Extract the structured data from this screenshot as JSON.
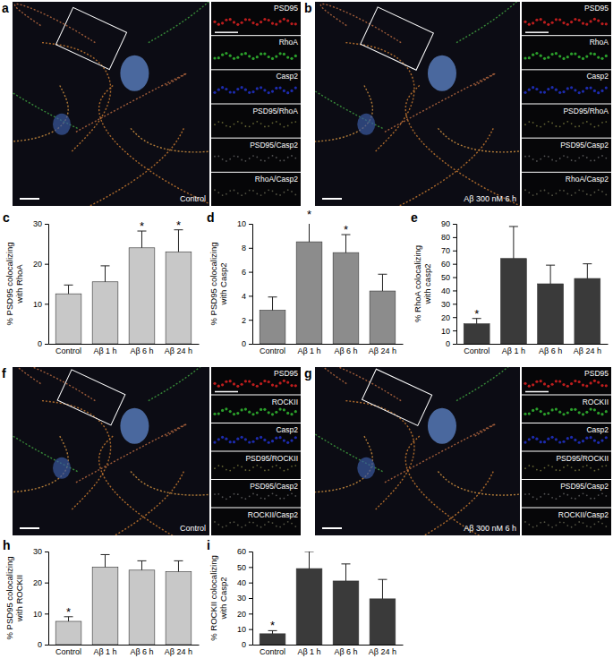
{
  "chart_data": [
    {
      "panel": "c",
      "type": "bar",
      "ylabel": "% PSD95 colocalizing with RhoA",
      "categories": [
        "Control",
        "Aβ 1 h",
        "Aβ 6 h",
        "Aβ 24 h"
      ],
      "values": [
        12.5,
        15.5,
        24,
        23
      ],
      "errors": [
        2.2,
        4,
        4.2,
        5.5
      ],
      "color": "#c8c8c8",
      "ylim": [
        0,
        30
      ],
      "yticks": [
        0,
        10,
        20,
        30
      ],
      "annotations": [
        {
          "text": "*",
          "x": "Aβ 6 h"
        },
        {
          "text": "*",
          "x": "Aβ 24 h"
        }
      ]
    },
    {
      "panel": "d",
      "type": "bar",
      "ylabel": "% PSD95 colocalizing with Casp2",
      "categories": [
        "Control",
        "Aβ 1 h",
        "Aβ 6 h",
        "Aβ 24 h"
      ],
      "values": [
        2.8,
        8.5,
        7.6,
        4.4
      ],
      "errors": [
        1.1,
        1.9,
        1.5,
        1.4
      ],
      "color": "#8c8c8c",
      "ylim": [
        0,
        10
      ],
      "yticks": [
        0,
        2,
        4,
        6,
        8,
        10
      ],
      "annotations": [
        {
          "text": "*",
          "x": "Aβ 1 h"
        },
        {
          "text": "*",
          "x": "Aβ 6 h"
        }
      ]
    },
    {
      "panel": "e",
      "type": "bar",
      "ylabel": "% RhoA colocalizing with casp2",
      "categories": [
        "Control",
        "Aβ 1 h",
        "Aβ 6 h",
        "Aβ 24 h"
      ],
      "values": [
        15,
        64,
        45,
        49
      ],
      "errors": [
        4,
        24,
        14,
        11
      ],
      "color": "#3a3a3a",
      "ylim": [
        0,
        90
      ],
      "yticks": [
        0,
        10,
        20,
        30,
        40,
        50,
        60,
        70,
        80,
        90
      ],
      "annotations": [
        {
          "text": "*",
          "x": "Control"
        }
      ]
    },
    {
      "panel": "h",
      "type": "bar",
      "ylabel": "% PSD95 colocalizing with ROCKII",
      "categories": [
        "Control",
        "Aβ 1 h",
        "Aβ 6 h",
        "Aβ 24 h"
      ],
      "values": [
        7.5,
        25,
        24,
        23.5
      ],
      "errors": [
        1.5,
        4,
        3,
        3.5
      ],
      "color": "#c8c8c8",
      "ylim": [
        0,
        30
      ],
      "yticks": [
        0,
        10,
        20,
        30
      ],
      "annotations": [
        {
          "text": "*",
          "x": "Control"
        }
      ]
    },
    {
      "panel": "i",
      "type": "bar",
      "ylabel": "% ROCKII colocalizing with Casp2",
      "categories": [
        "Control",
        "Aβ 1 h",
        "Aβ 6 h",
        "Aβ 24 h"
      ],
      "values": [
        7,
        49,
        41,
        29.5
      ],
      "errors": [
        2,
        11,
        11,
        12.5
      ],
      "color": "#3a3a3a",
      "ylim": [
        0,
        60
      ],
      "yticks": [
        0,
        10,
        20,
        30,
        40,
        50,
        60
      ],
      "annotations": [
        {
          "text": "*",
          "x": "Control"
        }
      ]
    }
  ],
  "image_panels": [
    {
      "panel": "a",
      "condition": "Control",
      "channels": [
        "PSD95",
        "RhoA",
        "Casp2",
        "PSD95/RhoA",
        "PSD95/Casp2",
        "RhoA/Casp2"
      ]
    },
    {
      "panel": "b",
      "condition": "Aβ 300 nM 6 h",
      "channels": [
        "PSD95",
        "RhoA",
        "Casp2",
        "PSD95/RhoA",
        "PSD95/Casp2",
        "RhoA/Casp2"
      ]
    },
    {
      "panel": "f",
      "condition": "Control",
      "channels": [
        "PSD95",
        "ROCKII",
        "Casp2",
        "PSD95/ROCKII",
        "PSD95/Casp2",
        "ROCKII/Casp2"
      ]
    },
    {
      "panel": "g",
      "condition": "Aβ 300 nM 6 h",
      "channels": [
        "PSD95",
        "ROCKII",
        "Casp2",
        "PSD95/ROCKII",
        "PSD95/Casp2",
        "ROCKII/Casp2"
      ]
    }
  ]
}
